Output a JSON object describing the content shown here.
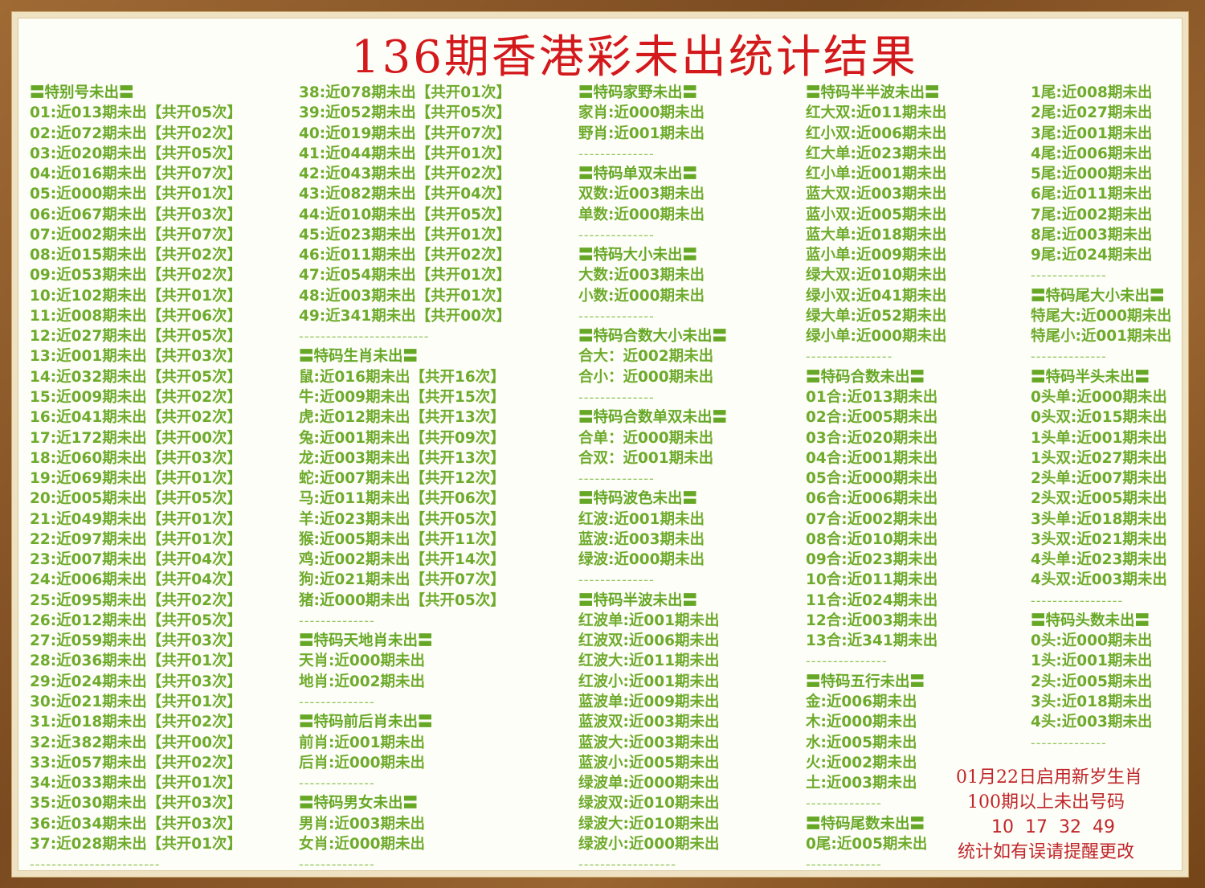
{
  "title": "136期香港彩未出统计结果",
  "colors": {
    "text_green": "#6eab2c",
    "title_red": "#d3191c",
    "note_red": "#c0262a",
    "frame_brown": "#8b5a2b"
  },
  "columns": [
    [
      "〓特别号未出〓",
      "01:近013期未出【共开05次】",
      "02:近072期未出【共开02次】",
      "03:近020期未出【共开05次】",
      "04:近016期未出【共开07次】",
      "05:近000期未出【共开01次】",
      "06:近067期未出【共开03次】",
      "07:近002期未出【共开07次】",
      "08:近015期未出【共开02次】",
      "09:近053期未出【共开02次】",
      "10:近102期未出【共开01次】",
      "11:近008期未出【共开06次】",
      "12:近027期未出【共开05次】",
      "13:近001期未出【共开03次】",
      "14:近032期未出【共开05次】",
      "15:近009期未出【共开02次】",
      "16:近041期未出【共开02次】",
      "17:近172期未出【共开00次】",
      "18:近060期未出【共开03次】",
      "19:近069期未出【共开01次】",
      "20:近005期未出【共开05次】",
      "21:近049期未出【共开01次】",
      "22:近097期未出【共开01次】",
      "23:近007期未出【共开04次】",
      "24:近006期未出【共开04次】",
      "25:近095期未出【共开02次】",
      "26:近012期未出【共开05次】",
      "27:近059期未出【共开03次】",
      "28:近036期未出【共开01次】",
      "29:近024期未出【共开03次】",
      "30:近021期未出【共开01次】",
      "31:近018期未出【共开02次】",
      "32:近382期未出【共开00次】",
      "33:近057期未出【共开02次】",
      "34:近033期未出【共开01次】",
      "35:近030期未出【共开03次】",
      "36:近034期未出【共开03次】",
      "37:近028期未出【共开01次】",
      "------------------------"
    ],
    [
      "38:近078期未出【共开01次】",
      "39:近052期未出【共开05次】",
      "40:近019期未出【共开07次】",
      "41:近044期未出【共开01次】",
      "42:近043期未出【共开02次】",
      "43:近082期未出【共开04次】",
      "44:近010期未出【共开05次】",
      "45:近023期未出【共开01次】",
      "46:近011期未出【共开02次】",
      "47:近054期未出【共开01次】",
      "48:近003期未出【共开01次】",
      "49:近341期未出【共开00次】",
      "------------------------",
      "〓特码生肖未出〓",
      "鼠:近016期未出【共开16次】",
      "牛:近009期未出【共开15次】",
      "虎:近012期未出【共开13次】",
      "兔:近001期未出【共开09次】",
      "龙:近003期未出【共开13次】",
      "蛇:近007期未出【共开12次】",
      "马:近011期未出【共开06次】",
      "羊:近023期未出【共开05次】",
      "猴:近005期未出【共开11次】",
      "鸡:近002期未出【共开14次】",
      "狗:近021期未出【共开07次】",
      "猪:近000期未出【共开05次】",
      "--------------",
      "〓特码天地肖未出〓",
      "天肖:近000期未出",
      "地肖:近002期未出",
      "--------------",
      "〓特码前后肖未出〓",
      "前肖:近001期未出",
      "后肖:近000期未出",
      "--------------",
      "〓特码男女未出〓",
      "男肖:近003期未出",
      "女肖:近000期未出",
      "--------------"
    ],
    [
      "〓特码家野未出〓",
      "家肖:近000期未出",
      "野肖:近001期未出",
      "--------------",
      "〓特码单双未出〓",
      "双数:近003期未出",
      "单数:近000期未出",
      "--------------",
      "〓特码大小未出〓",
      "大数:近003期未出",
      "小数:近000期未出",
      "--------------",
      "〓特码合数大小未出〓",
      "合大：近002期未出",
      "合小：近000期未出",
      "--------------",
      "〓特码合数单双未出〓",
      "合单：近000期未出",
      "合双：近001期未出",
      "--------------",
      "〓特码波色未出〓",
      "红波:近001期未出",
      "蓝波:近003期未出",
      "绿波:近000期未出",
      "--------------",
      "〓特码半波未出〓",
      "红波单:近001期未出",
      "红波双:近006期未出",
      "红波大:近011期未出",
      "红波小:近001期未出",
      "蓝波单:近009期未出",
      "蓝波双:近003期未出",
      "蓝波大:近003期未出",
      "蓝波小:近005期未出",
      "绿波单:近000期未出",
      "绿波双:近010期未出",
      "绿波大:近010期未出",
      "绿波小:近000期未出",
      "------------------"
    ],
    [
      "〓特码半半波未出〓",
      "红大双:近011期未出",
      "红小双:近006期未出",
      "红大单:近023期未出",
      "红小单:近001期未出",
      "蓝大双:近003期未出",
      "蓝小双:近005期未出",
      "蓝大单:近018期未出",
      "蓝小单:近009期未出",
      "绿大双:近010期未出",
      "绿小双:近041期未出",
      "绿大单:近052期未出",
      "绿小单:近000期未出",
      "----------------",
      "〓特码合数未出〓",
      "01合:近013期未出",
      "02合:近005期未出",
      "03合:近020期未出",
      "04合:近001期未出",
      "05合:近000期未出",
      "06合:近006期未出",
      "07合:近002期未出",
      "08合:近010期未出",
      "09合:近023期未出",
      "10合:近011期未出",
      "11合:近024期未出",
      "12合:近003期未出",
      "13合:近341期未出",
      "---------------",
      "〓特码五行未出〓",
      "金:近006期未出",
      "木:近000期未出",
      "水:近005期未出",
      "火:近002期未出",
      "土:近003期未出",
      "--------------",
      "〓特码尾数未出〓",
      "0尾:近005期未出",
      "--------------"
    ],
    [
      "1尾:近008期未出",
      "2尾:近027期未出",
      "3尾:近001期未出",
      "4尾:近006期未出",
      "5尾:近000期未出",
      "6尾:近011期未出",
      "7尾:近002期未出",
      "8尾:近003期未出",
      "9尾:近024期未出",
      "--------------",
      "〓特码尾大小未出〓",
      "特尾大:近000期未出",
      "特尾小:近001期未出",
      "--------------",
      "〓特码半头未出〓",
      "0头单:近000期未出",
      "0头双:近015期未出",
      "1头单:近001期未出",
      "1头双:近027期未出",
      "2头单:近007期未出",
      "2头双:近005期未出",
      "3头单:近018期未出",
      "3头双:近021期未出",
      "4头单:近023期未出",
      "4头双:近003期未出",
      "-----------------",
      "〓特码头数未出〓",
      "0头:近000期未出",
      "1头:近001期未出",
      "2头:近005期未出",
      "3头:近018期未出",
      "4头:近003期未出",
      "--------------"
    ]
  ],
  "note": {
    "line1": "01月22日启用新岁生肖",
    "line2": "100期以上未出号码",
    "numbers": "10  17  32  49",
    "line4": "统计如有误请提醒更改"
  }
}
